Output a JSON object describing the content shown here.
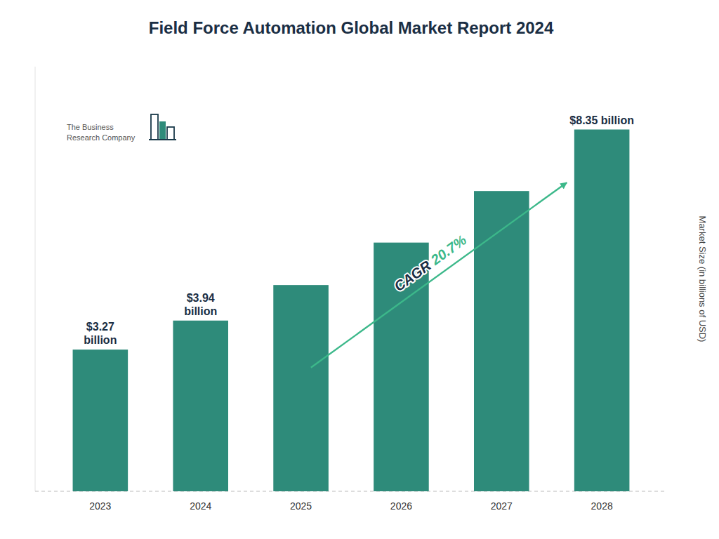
{
  "chart_data": {
    "type": "bar",
    "title": "Field Force Automation Global Market Report 2024",
    "categories": [
      "2023",
      "2024",
      "2025",
      "2026",
      "2027",
      "2028"
    ],
    "values": [
      3.27,
      3.94,
      4.76,
      5.74,
      6.93,
      8.35
    ],
    "value_labels": [
      "$3.27\nbillion",
      "$3.94\nbillion",
      null,
      null,
      null,
      "$8.35 billion"
    ],
    "color": "#2E8B7A",
    "y_label": "Market Size (in billions of USD)",
    "ylim": [
      0,
      9.8
    ],
    "yticks": [],
    "grid": false,
    "tick_labels": "x",
    "annotations": [
      "CAGR 20.7%",
      "The Business\nResearch Company"
    ]
  }
}
